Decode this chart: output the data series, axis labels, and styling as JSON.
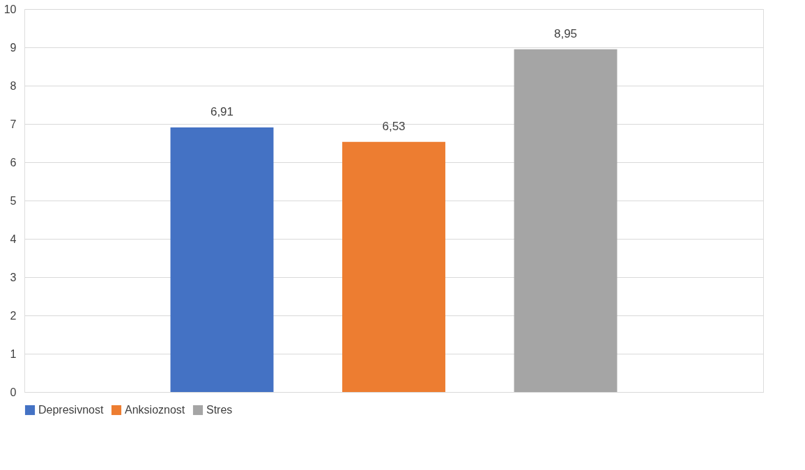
{
  "chart_data": {
    "type": "bar",
    "categories": [
      null
    ],
    "series": [
      {
        "name": "Depresivnost",
        "color": "#4472c4",
        "values": [
          6.91
        ],
        "value_labels": [
          "6,91"
        ]
      },
      {
        "name": "Anksioznost",
        "color": "#ed7d31",
        "values": [
          6.53
        ],
        "value_labels": [
          "6,53"
        ]
      },
      {
        "name": "Stres",
        "color": "#a5a5a5",
        "values": [
          8.95
        ],
        "value_labels": [
          "8,95"
        ]
      }
    ],
    "ylim": [
      0,
      10
    ],
    "yticks": [
      0,
      1,
      2,
      3,
      4,
      5,
      6,
      7,
      8,
      9,
      10
    ],
    "grid": "y",
    "legend": "bottom",
    "tick_labels": "y"
  }
}
